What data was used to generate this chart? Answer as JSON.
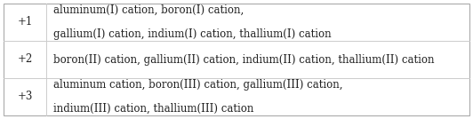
{
  "rows": [
    {
      "charge": "+1",
      "text_line1": "aluminum(I) cation, boron(I) cation,",
      "text_line2": "gallium(I) cation, indium(I) cation, thallium(I) cation"
    },
    {
      "charge": "+2",
      "text_line1": "boron(II) cation, gallium(II) cation, indium(II) cation, thallium(II) cation",
      "text_line2": null
    },
    {
      "charge": "+3",
      "text_line1": "aluminum cation, boron(III) cation, gallium(III) cation,",
      "text_line2": "indium(III) cation, thallium(III) cation"
    }
  ],
  "background_color": "#ffffff",
  "border_color": "#aaaaaa",
  "divider_color": "#cccccc",
  "charge_color": "#222222",
  "text_color": "#222222",
  "charge_fontsize": 8.5,
  "text_fontsize": 8.5,
  "figwidth": 5.32,
  "figheight": 1.34,
  "dpi": 100
}
